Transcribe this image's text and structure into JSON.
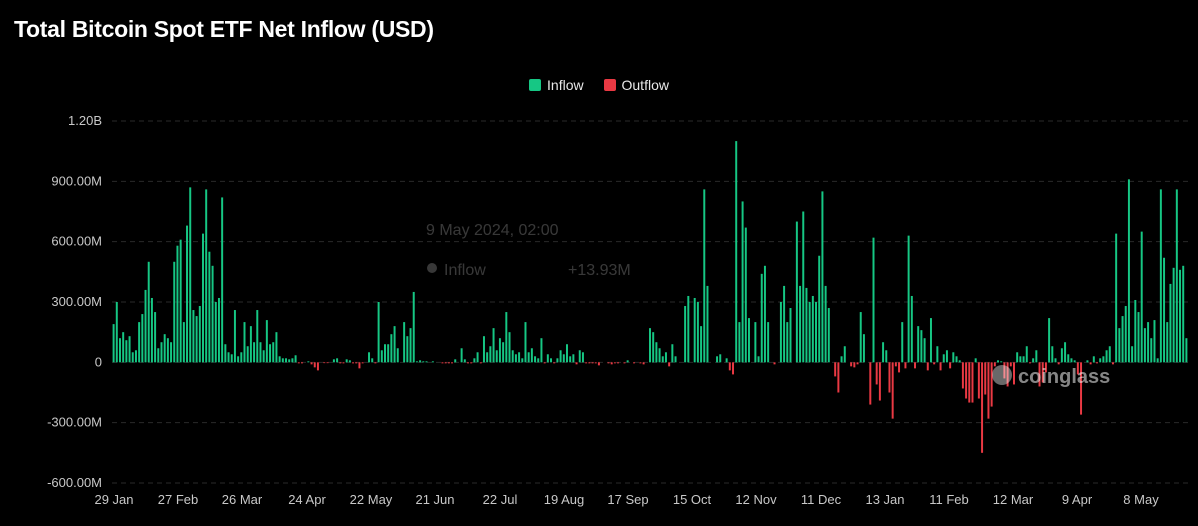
{
  "title": "Total Bitcoin Spot ETF Net Inflow (USD)",
  "watermark": "coinglass",
  "colors": {
    "inflow": "#16c784",
    "outflow": "#ea3943",
    "grid": "#2a2a2a",
    "background": "#000000"
  },
  "tooltip": {
    "date": "9 May 2024, 02:00",
    "series": "Inflow",
    "value": "+13.93M"
  },
  "chart_data": {
    "type": "bar",
    "title": "Total Bitcoin Spot ETF Net Inflow (USD)",
    "series_names": [
      "Inflow",
      "Outflow"
    ],
    "legend_position": "top-center",
    "grid": true,
    "unit": "USD",
    "ylim": [
      -600000000,
      1200000000
    ],
    "yticks": [
      -600000000,
      -300000000,
      0,
      300000000,
      600000000,
      900000000,
      1200000000
    ],
    "ytick_labels": [
      "-600.00M",
      "-300.00M",
      "0",
      "300.00M",
      "600.00M",
      "900.00M",
      "1.20B"
    ],
    "xtick_labels": [
      "29 Jan",
      "27 Feb",
      "26 Mar",
      "24 Apr",
      "22 May",
      "21 Jun",
      "22 Jul",
      "19 Aug",
      "17 Sep",
      "15 Oct",
      "12 Nov",
      "11 Dec",
      "13 Jan",
      "11 Feb",
      "12 Mar",
      "9 Apr",
      "8 May"
    ],
    "x_start_date": "2024-01-11",
    "daily_net_flow_musd": [
      190,
      300,
      120,
      150,
      110,
      130,
      50,
      60,
      200,
      240,
      360,
      500,
      320,
      250,
      70,
      100,
      140,
      120,
      100,
      500,
      580,
      610,
      200,
      680,
      870,
      260,
      230,
      280,
      640,
      860,
      550,
      480,
      300,
      320,
      820,
      90,
      50,
      40,
      260,
      30,
      50,
      200,
      80,
      180,
      100,
      260,
      100,
      60,
      210,
      90,
      100,
      150,
      30,
      20,
      20,
      15,
      20,
      35,
      -5,
      -5,
      0,
      5,
      -10,
      -25,
      -40,
      0,
      -2,
      -2,
      0,
      15,
      20,
      -5,
      -5,
      15,
      10,
      -5,
      -5,
      -30,
      -5,
      0,
      50,
      20,
      -5,
      300,
      60,
      90,
      90,
      140,
      180,
      70,
      0,
      200,
      130,
      170,
      350,
      5,
      10,
      5,
      5,
      0,
      5,
      0,
      0,
      -5,
      -5,
      -5,
      -5,
      15,
      0,
      70,
      15,
      -5,
      -5,
      20,
      50,
      -5,
      130,
      50,
      80,
      170,
      60,
      120,
      100,
      250,
      150,
      60,
      40,
      50,
      20,
      200,
      50,
      70,
      30,
      20,
      120,
      -5,
      40,
      20,
      -5,
      20,
      60,
      40,
      90,
      30,
      40,
      -10,
      60,
      50,
      -5,
      -5,
      -5,
      -5,
      -15,
      0,
      0,
      -5,
      -10,
      -5,
      -5,
      0,
      -5,
      10,
      0,
      -5,
      0,
      -5,
      -10,
      0,
      170,
      150,
      100,
      70,
      30,
      50,
      -20,
      90,
      30,
      0,
      0,
      280,
      330,
      0,
      320,
      300,
      180,
      860,
      380,
      0,
      0,
      30,
      40,
      0,
      20,
      -40,
      -60,
      1100,
      200,
      800,
      670,
      220,
      0,
      200,
      30,
      440,
      480,
      200,
      0,
      -10,
      0,
      300,
      380,
      200,
      270,
      0,
      700,
      380,
      750,
      370,
      300,
      330,
      300,
      530,
      850,
      380,
      270,
      0,
      -70,
      -150,
      30,
      80,
      0,
      -20,
      -25,
      -10,
      250,
      140,
      0,
      -210,
      620,
      -110,
      -190,
      100,
      60,
      -150,
      -280,
      -20,
      -50,
      200,
      -30,
      630,
      330,
      -30,
      180,
      160,
      120,
      -40,
      220,
      -10,
      80,
      -40,
      40,
      60,
      -30,
      50,
      30,
      10,
      -130,
      -180,
      -200,
      -200,
      20,
      -180,
      -450,
      -160,
      -280,
      -220,
      -20,
      10,
      5,
      -80,
      -120,
      -20,
      -110,
      50,
      30,
      30,
      80,
      -5,
      20,
      60,
      -120,
      -100,
      -50,
      220,
      80,
      20,
      -10,
      70,
      100,
      40,
      20,
      10,
      -60,
      -260,
      0,
      10,
      -10,
      30,
      -5,
      20,
      30,
      60,
      80,
      -10,
      640,
      170,
      230,
      280,
      910,
      80,
      310,
      250,
      650,
      170,
      200,
      120,
      210,
      20,
      860,
      520,
      200,
      390,
      470,
      860,
      460,
      480,
      120
    ]
  }
}
